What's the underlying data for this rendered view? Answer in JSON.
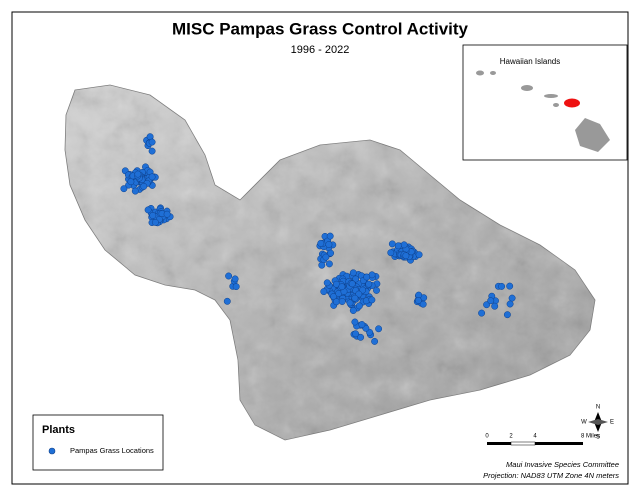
{
  "header": {
    "title": "MISC Pampas Grass Control Activity",
    "subtitle": "1996 - 2022"
  },
  "inset": {
    "label": "Hawaiian Islands"
  },
  "legend": {
    "title": "Plants",
    "item": "Pampas Grass Locations"
  },
  "scale_bar": {
    "labels": [
      "0",
      "2",
      "4",
      "8 Miles"
    ]
  },
  "north_arrow": {
    "n": "N",
    "s": "S",
    "e": "E",
    "w": "W"
  },
  "credits": {
    "line1": "Maui Invasive Species Committee",
    "line2": "Projection: NAD83 UTM Zone 4N meters"
  }
}
